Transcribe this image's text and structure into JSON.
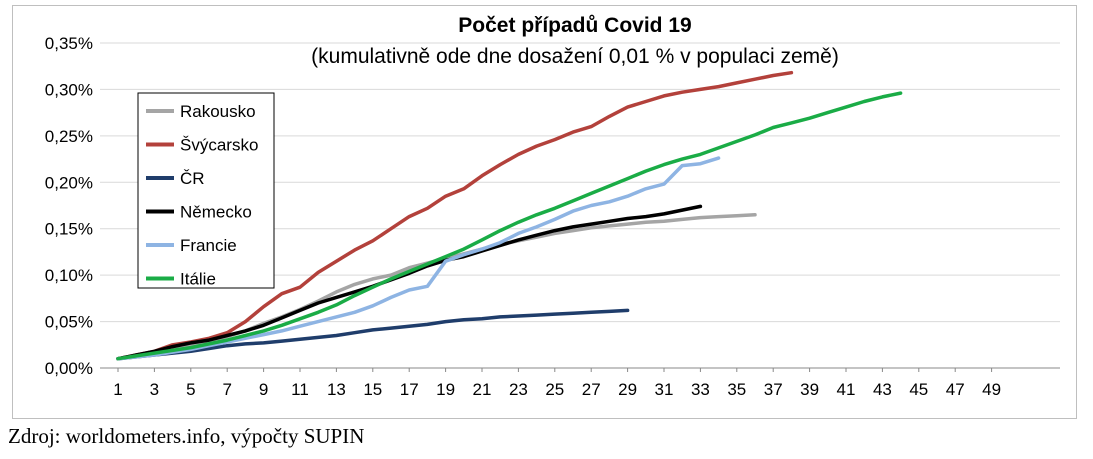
{
  "chart_data": {
    "type": "line",
    "title": "Počet případů Covid 19",
    "subtitle": "(kumulativně ode dne dosažení 0,01 % v populaci země)",
    "xlabel": "",
    "ylabel": "",
    "xlim": [
      1,
      50
    ],
    "ylim": [
      0,
      0.35
    ],
    "x_ticks": [
      1,
      3,
      5,
      7,
      9,
      11,
      13,
      15,
      17,
      19,
      21,
      23,
      25,
      27,
      29,
      31,
      33,
      35,
      37,
      39,
      41,
      43,
      45,
      47,
      49
    ],
    "y_ticks": [
      {
        "value": 0.0,
        "label": "0,00%"
      },
      {
        "value": 0.05,
        "label": "0,05%"
      },
      {
        "value": 0.1,
        "label": "0,10%"
      },
      {
        "value": 0.15,
        "label": "0,15%"
      },
      {
        "value": 0.2,
        "label": "0,20%"
      },
      {
        "value": 0.25,
        "label": "0,25%"
      },
      {
        "value": 0.3,
        "label": "0,30%"
      },
      {
        "value": 0.35,
        "label": "0,35%"
      }
    ],
    "grid": "horizontal",
    "legend_position": "top-left",
    "series": [
      {
        "name": "Rakousko",
        "color": "#a5a5a5",
        "values": [
          0.01,
          0.013,
          0.016,
          0.02,
          0.024,
          0.028,
          0.034,
          0.04,
          0.048,
          0.055,
          0.063,
          0.072,
          0.082,
          0.09,
          0.096,
          0.1,
          0.108,
          0.113,
          0.118,
          0.123,
          0.128,
          0.133,
          0.137,
          0.141,
          0.145,
          0.148,
          0.151,
          0.153,
          0.155,
          0.157,
          0.158,
          0.16,
          0.162,
          0.163,
          0.164,
          0.165
        ]
      },
      {
        "name": "Švýcarsko",
        "color": "#b3413b",
        "values": [
          0.01,
          0.014,
          0.018,
          0.025,
          0.028,
          0.032,
          0.038,
          0.05,
          0.066,
          0.08,
          0.087,
          0.103,
          0.115,
          0.127,
          0.137,
          0.15,
          0.163,
          0.172,
          0.185,
          0.193,
          0.207,
          0.219,
          0.23,
          0.239,
          0.246,
          0.254,
          0.26,
          0.271,
          0.281,
          0.287,
          0.293,
          0.297,
          0.3,
          0.303,
          0.307,
          0.311,
          0.315,
          0.318
        ]
      },
      {
        "name": "ČR",
        "color": "#1f3d6b",
        "values": [
          0.01,
          0.012,
          0.014,
          0.016,
          0.018,
          0.021,
          0.024,
          0.026,
          0.027,
          0.029,
          0.031,
          0.033,
          0.035,
          0.038,
          0.041,
          0.043,
          0.045,
          0.047,
          0.05,
          0.052,
          0.053,
          0.055,
          0.056,
          0.057,
          0.058,
          0.059,
          0.06,
          0.061,
          0.062
        ]
      },
      {
        "name": "Německo",
        "color": "#000000",
        "values": [
          0.01,
          0.014,
          0.018,
          0.023,
          0.027,
          0.03,
          0.035,
          0.04,
          0.046,
          0.054,
          0.062,
          0.07,
          0.076,
          0.082,
          0.088,
          0.095,
          0.102,
          0.11,
          0.116,
          0.12,
          0.126,
          0.132,
          0.138,
          0.143,
          0.148,
          0.152,
          0.155,
          0.158,
          0.161,
          0.163,
          0.166,
          0.17,
          0.174
        ]
      },
      {
        "name": "Francie",
        "color": "#8eb4e3",
        "values": [
          0.01,
          0.012,
          0.014,
          0.017,
          0.02,
          0.024,
          0.028,
          0.032,
          0.036,
          0.04,
          0.045,
          0.05,
          0.055,
          0.06,
          0.067,
          0.076,
          0.084,
          0.088,
          0.115,
          0.122,
          0.128,
          0.135,
          0.145,
          0.152,
          0.16,
          0.169,
          0.175,
          0.179,
          0.185,
          0.193,
          0.198,
          0.218,
          0.22,
          0.226
        ]
      },
      {
        "name": "Itálie",
        "color": "#1aac46",
        "values": [
          0.01,
          0.013,
          0.016,
          0.019,
          0.022,
          0.026,
          0.03,
          0.035,
          0.04,
          0.046,
          0.053,
          0.06,
          0.068,
          0.078,
          0.087,
          0.096,
          0.104,
          0.112,
          0.12,
          0.128,
          0.138,
          0.148,
          0.157,
          0.165,
          0.172,
          0.18,
          0.188,
          0.196,
          0.204,
          0.212,
          0.219,
          0.225,
          0.23,
          0.237,
          0.244,
          0.251,
          0.259,
          0.264,
          0.269,
          0.275,
          0.281,
          0.287,
          0.292,
          0.296
        ]
      }
    ]
  },
  "source_note": "Zdroj: worldometers.info, výpočty SUPIN"
}
